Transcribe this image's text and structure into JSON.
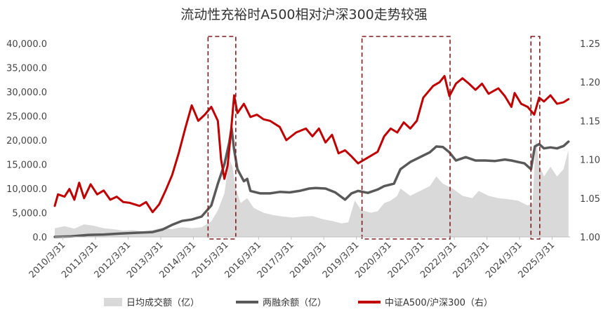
{
  "chart_data": {
    "type": "line",
    "title": "流动性充裕时A500相对沪深300走势较强",
    "x_tick_labels": [
      "2010/3/31",
      "2011/3/31",
      "2012/3/31",
      "2013/3/31",
      "2014/3/31",
      "2015/3/31",
      "2016/3/31",
      "2017/3/31",
      "2018/3/31",
      "2019/3/31",
      "2020/3/31",
      "2021/3/31",
      "2022/3/31",
      "2023/3/31",
      "2024/3/31",
      "2025/3/31"
    ],
    "x_range": [
      2010.0,
      2025.8
    ],
    "y_left": {
      "ylim": [
        0,
        40000
      ],
      "tick_values": [
        0,
        5000,
        10000,
        15000,
        20000,
        25000,
        30000,
        35000,
        40000
      ],
      "tick_labels": [
        "0.0",
        "5,000.0",
        "10,000.0",
        "15,000.0",
        "20,000.0",
        "25,000.0",
        "30,000.0",
        "35,000.0",
        "40,000.0"
      ]
    },
    "y_right": {
      "ylim": [
        1.0,
        1.25
      ],
      "tick_values": [
        1.0,
        1.05,
        1.1,
        1.15,
        1.2,
        1.25
      ],
      "tick_labels": [
        "1.00",
        "1.05",
        "1.10",
        "1.15",
        "1.20",
        "1.25"
      ]
    },
    "legend_position": "bottom",
    "series": [
      {
        "name": "日均成交额（亿）",
        "kind": "area",
        "axis": "left",
        "color": "#d9d9d9",
        "points": [
          [
            2010.0,
            1800
          ],
          [
            2010.3,
            2200
          ],
          [
            2010.6,
            1700
          ],
          [
            2010.9,
            2600
          ],
          [
            2011.2,
            2300
          ],
          [
            2011.5,
            1800
          ],
          [
            2011.8,
            1600
          ],
          [
            2012.1,
            1300
          ],
          [
            2012.4,
            1400
          ],
          [
            2012.7,
            1100
          ],
          [
            2013.0,
            1400
          ],
          [
            2013.3,
            1900
          ],
          [
            2013.6,
            1600
          ],
          [
            2013.9,
            2000
          ],
          [
            2014.2,
            1800
          ],
          [
            2014.5,
            2000
          ],
          [
            2014.8,
            3200
          ],
          [
            2015.0,
            5500
          ],
          [
            2015.2,
            9000
          ],
          [
            2015.35,
            16000
          ],
          [
            2015.45,
            14500
          ],
          [
            2015.55,
            10000
          ],
          [
            2015.7,
            7000
          ],
          [
            2015.9,
            8000
          ],
          [
            2016.1,
            6000
          ],
          [
            2016.4,
            5000
          ],
          [
            2016.7,
            4500
          ],
          [
            2017.0,
            4200
          ],
          [
            2017.3,
            4000
          ],
          [
            2017.6,
            4200
          ],
          [
            2017.9,
            4300
          ],
          [
            2018.2,
            3700
          ],
          [
            2018.5,
            3300
          ],
          [
            2018.8,
            2800
          ],
          [
            2019.0,
            3000
          ],
          [
            2019.2,
            7500
          ],
          [
            2019.4,
            5500
          ],
          [
            2019.7,
            5000
          ],
          [
            2019.9,
            5300
          ],
          [
            2020.1,
            7000
          ],
          [
            2020.3,
            7500
          ],
          [
            2020.5,
            8500
          ],
          [
            2020.6,
            10000
          ],
          [
            2020.9,
            8500
          ],
          [
            2021.2,
            9500
          ],
          [
            2021.5,
            10500
          ],
          [
            2021.7,
            12500
          ],
          [
            2021.9,
            11000
          ],
          [
            2022.2,
            10000
          ],
          [
            2022.5,
            8500
          ],
          [
            2022.8,
            8000
          ],
          [
            2023.0,
            9500
          ],
          [
            2023.3,
            8500
          ],
          [
            2023.6,
            8000
          ],
          [
            2023.9,
            7800
          ],
          [
            2024.2,
            7500
          ],
          [
            2024.5,
            6500
          ],
          [
            2024.65,
            7000
          ],
          [
            2024.75,
            20500
          ],
          [
            2024.85,
            15000
          ],
          [
            2025.0,
            12500
          ],
          [
            2025.2,
            14500
          ],
          [
            2025.4,
            12500
          ],
          [
            2025.6,
            14000
          ],
          [
            2025.75,
            18000
          ]
        ]
      },
      {
        "name": "两融余额（亿）",
        "kind": "line",
        "axis": "left",
        "color": "#595959",
        "points": [
          [
            2010.0,
            0
          ],
          [
            2010.5,
            100
          ],
          [
            2011.0,
            400
          ],
          [
            2011.5,
            500
          ],
          [
            2012.0,
            700
          ],
          [
            2012.5,
            850
          ],
          [
            2013.0,
            1000
          ],
          [
            2013.3,
            1500
          ],
          [
            2013.6,
            2500
          ],
          [
            2013.9,
            3300
          ],
          [
            2014.2,
            3600
          ],
          [
            2014.5,
            4200
          ],
          [
            2014.8,
            6500
          ],
          [
            2015.0,
            11000
          ],
          [
            2015.2,
            15000
          ],
          [
            2015.35,
            19500
          ],
          [
            2015.42,
            22500
          ],
          [
            2015.5,
            18000
          ],
          [
            2015.6,
            14000
          ],
          [
            2015.8,
            11500
          ],
          [
            2015.9,
            12000
          ],
          [
            2016.0,
            9500
          ],
          [
            2016.3,
            9000
          ],
          [
            2016.6,
            9000
          ],
          [
            2016.9,
            9300
          ],
          [
            2017.2,
            9200
          ],
          [
            2017.5,
            9500
          ],
          [
            2017.8,
            10000
          ],
          [
            2018.0,
            10100
          ],
          [
            2018.3,
            10000
          ],
          [
            2018.6,
            9200
          ],
          [
            2018.9,
            7700
          ],
          [
            2019.1,
            9000
          ],
          [
            2019.3,
            9500
          ],
          [
            2019.6,
            9100
          ],
          [
            2019.9,
            9800
          ],
          [
            2020.1,
            10500
          ],
          [
            2020.4,
            11000
          ],
          [
            2020.6,
            14000
          ],
          [
            2020.9,
            15500
          ],
          [
            2021.2,
            16500
          ],
          [
            2021.5,
            17500
          ],
          [
            2021.7,
            18700
          ],
          [
            2021.9,
            18600
          ],
          [
            2022.1,
            17500
          ],
          [
            2022.3,
            15800
          ],
          [
            2022.6,
            16500
          ],
          [
            2022.9,
            15800
          ],
          [
            2023.2,
            15800
          ],
          [
            2023.5,
            15700
          ],
          [
            2023.8,
            16000
          ],
          [
            2024.0,
            15800
          ],
          [
            2024.2,
            15500
          ],
          [
            2024.4,
            15200
          ],
          [
            2024.6,
            14000
          ],
          [
            2024.72,
            18700
          ],
          [
            2024.85,
            19200
          ],
          [
            2025.0,
            18300
          ],
          [
            2025.2,
            18500
          ],
          [
            2025.4,
            18300
          ],
          [
            2025.6,
            18800
          ],
          [
            2025.75,
            19700
          ]
        ]
      },
      {
        "name": "中证A500/沪深300（右）",
        "kind": "line",
        "axis": "right",
        "color": "#c00000",
        "points": [
          [
            2010.0,
            1.04
          ],
          [
            2010.1,
            1.055
          ],
          [
            2010.3,
            1.052
          ],
          [
            2010.45,
            1.062
          ],
          [
            2010.6,
            1.048
          ],
          [
            2010.75,
            1.07
          ],
          [
            2010.9,
            1.05
          ],
          [
            2011.1,
            1.068
          ],
          [
            2011.3,
            1.055
          ],
          [
            2011.5,
            1.06
          ],
          [
            2011.7,
            1.048
          ],
          [
            2011.9,
            1.052
          ],
          [
            2012.1,
            1.045
          ],
          [
            2012.3,
            1.044
          ],
          [
            2012.6,
            1.04
          ],
          [
            2012.8,
            1.045
          ],
          [
            2013.0,
            1.032
          ],
          [
            2013.2,
            1.042
          ],
          [
            2013.4,
            1.06
          ],
          [
            2013.6,
            1.08
          ],
          [
            2013.8,
            1.108
          ],
          [
            2014.0,
            1.14
          ],
          [
            2014.2,
            1.17
          ],
          [
            2014.4,
            1.15
          ],
          [
            2014.6,
            1.158
          ],
          [
            2014.8,
            1.168
          ],
          [
            2015.0,
            1.15
          ],
          [
            2015.1,
            1.1
          ],
          [
            2015.2,
            1.075
          ],
          [
            2015.3,
            1.092
          ],
          [
            2015.4,
            1.135
          ],
          [
            2015.5,
            1.183
          ],
          [
            2015.6,
            1.16
          ],
          [
            2015.8,
            1.172
          ],
          [
            2016.0,
            1.155
          ],
          [
            2016.2,
            1.158
          ],
          [
            2016.4,
            1.152
          ],
          [
            2016.6,
            1.15
          ],
          [
            2016.9,
            1.142
          ],
          [
            2017.1,
            1.125
          ],
          [
            2017.4,
            1.135
          ],
          [
            2017.7,
            1.14
          ],
          [
            2017.9,
            1.13
          ],
          [
            2018.1,
            1.14
          ],
          [
            2018.3,
            1.122
          ],
          [
            2018.5,
            1.132
          ],
          [
            2018.7,
            1.108
          ],
          [
            2018.9,
            1.112
          ],
          [
            2019.1,
            1.104
          ],
          [
            2019.3,
            1.095
          ],
          [
            2019.5,
            1.1
          ],
          [
            2019.7,
            1.105
          ],
          [
            2019.9,
            1.11
          ],
          [
            2020.1,
            1.13
          ],
          [
            2020.3,
            1.14
          ],
          [
            2020.5,
            1.135
          ],
          [
            2020.7,
            1.148
          ],
          [
            2020.9,
            1.14
          ],
          [
            2021.1,
            1.15
          ],
          [
            2021.3,
            1.18
          ],
          [
            2021.6,
            1.195
          ],
          [
            2021.8,
            1.2
          ],
          [
            2021.95,
            1.208
          ],
          [
            2022.1,
            1.182
          ],
          [
            2022.3,
            1.198
          ],
          [
            2022.5,
            1.205
          ],
          [
            2022.7,
            1.198
          ],
          [
            2022.9,
            1.19
          ],
          [
            2023.1,
            1.198
          ],
          [
            2023.3,
            1.185
          ],
          [
            2023.6,
            1.192
          ],
          [
            2023.8,
            1.182
          ],
          [
            2024.0,
            1.168
          ],
          [
            2024.1,
            1.186
          ],
          [
            2024.3,
            1.172
          ],
          [
            2024.5,
            1.168
          ],
          [
            2024.7,
            1.158
          ],
          [
            2024.85,
            1.18
          ],
          [
            2025.0,
            1.175
          ],
          [
            2025.2,
            1.183
          ],
          [
            2025.4,
            1.172
          ],
          [
            2025.6,
            1.174
          ],
          [
            2025.75,
            1.178
          ]
        ]
      }
    ],
    "highlight_periods": [
      {
        "x_start": 2014.7,
        "x_end": 2015.55
      },
      {
        "x_start": 2019.42,
        "x_end": 2022.12
      },
      {
        "x_start": 2024.6,
        "x_end": 2024.87
      }
    ]
  }
}
